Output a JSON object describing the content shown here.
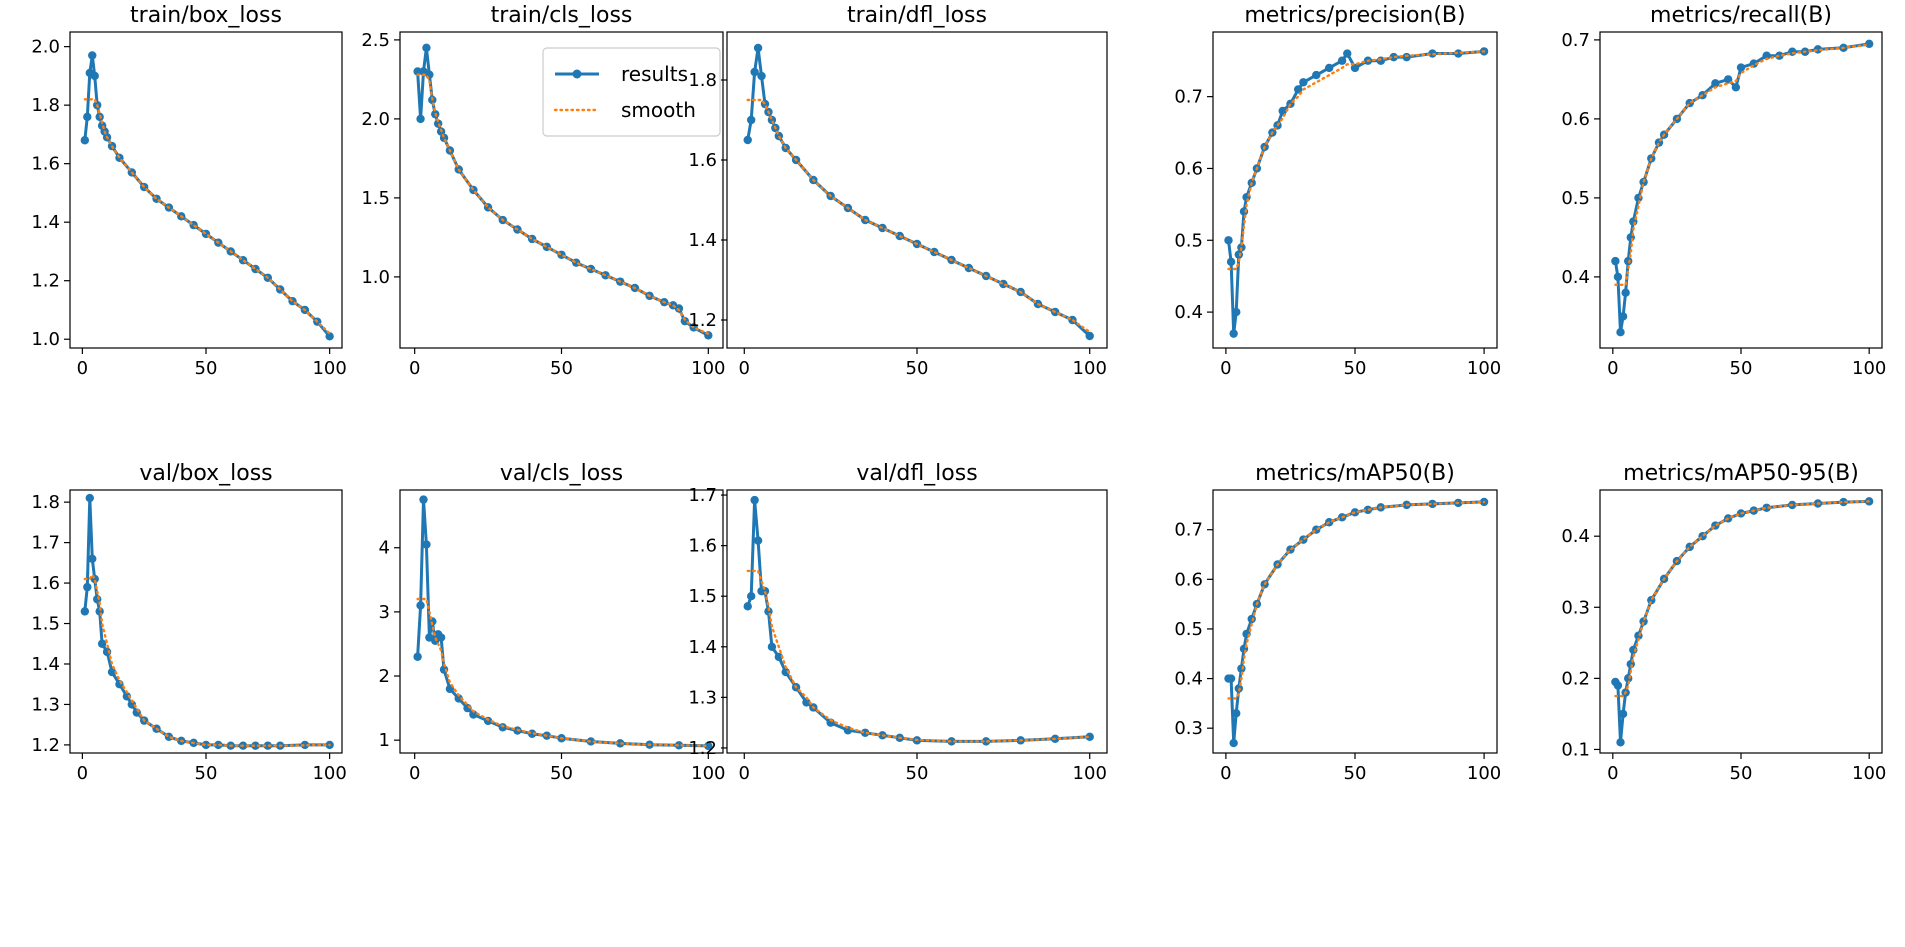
{
  "legend": {
    "results_label": "results",
    "smooth_label": "smooth",
    "results_color": "#1f77b4",
    "smooth_color": "#ff7f0e"
  },
  "chart_data": [
    {
      "type": "line",
      "title": "train/box_loss",
      "xlim": [
        -5,
        105
      ],
      "ylim": [
        0.97,
        2.05
      ],
      "xticks": [
        0,
        50,
        100
      ],
      "yticks": [
        1.0,
        1.2,
        1.4,
        1.6,
        1.8,
        2.0
      ],
      "decimals": 1,
      "grid": false,
      "x": [
        1,
        2,
        3,
        4,
        5,
        6,
        7,
        8,
        9,
        10,
        12,
        15,
        20,
        25,
        30,
        35,
        40,
        45,
        50,
        55,
        60,
        65,
        70,
        75,
        80,
        85,
        90,
        95,
        100
      ],
      "series": [
        {
          "name": "results",
          "values": [
            1.68,
            1.76,
            1.91,
            1.97,
            1.9,
            1.8,
            1.76,
            1.73,
            1.71,
            1.69,
            1.66,
            1.62,
            1.57,
            1.52,
            1.48,
            1.45,
            1.42,
            1.39,
            1.36,
            1.33,
            1.3,
            1.27,
            1.24,
            1.21,
            1.17,
            1.13,
            1.1,
            1.06,
            1.01
          ]
        },
        {
          "name": "smooth",
          "values": [
            1.82,
            1.82,
            1.82,
            1.82,
            1.82,
            1.8,
            1.77,
            1.74,
            1.71,
            1.69,
            1.66,
            1.62,
            1.57,
            1.52,
            1.48,
            1.45,
            1.42,
            1.39,
            1.36,
            1.33,
            1.3,
            1.27,
            1.24,
            1.21,
            1.17,
            1.13,
            1.1,
            1.06,
            1.02
          ]
        }
      ]
    },
    {
      "type": "line",
      "title": "train/cls_loss",
      "xlim": [
        -5,
        105
      ],
      "ylim": [
        0.55,
        2.55
      ],
      "xticks": [
        0,
        50,
        100
      ],
      "yticks": [
        1.0,
        1.5,
        2.0,
        2.5
      ],
      "decimals": 1,
      "grid": false,
      "legend_position": "upper right",
      "x": [
        1,
        2,
        3,
        4,
        5,
        6,
        7,
        8,
        9,
        10,
        12,
        15,
        20,
        25,
        30,
        35,
        40,
        45,
        50,
        55,
        60,
        65,
        70,
        75,
        80,
        85,
        88,
        90,
        92,
        95,
        100
      ],
      "series": [
        {
          "name": "results",
          "values": [
            2.3,
            2.0,
            2.3,
            2.45,
            2.28,
            2.12,
            2.03,
            1.97,
            1.92,
            1.88,
            1.8,
            1.68,
            1.55,
            1.44,
            1.36,
            1.3,
            1.24,
            1.19,
            1.14,
            1.09,
            1.05,
            1.01,
            0.97,
            0.93,
            0.88,
            0.84,
            0.82,
            0.8,
            0.72,
            0.68,
            0.63
          ]
        },
        {
          "name": "smooth",
          "values": [
            2.28,
            2.28,
            2.28,
            2.28,
            2.24,
            2.13,
            2.04,
            1.98,
            1.93,
            1.88,
            1.8,
            1.68,
            1.55,
            1.44,
            1.36,
            1.3,
            1.24,
            1.19,
            1.14,
            1.09,
            1.05,
            1.01,
            0.97,
            0.93,
            0.88,
            0.84,
            0.82,
            0.79,
            0.73,
            0.68,
            0.64
          ]
        }
      ]
    },
    {
      "type": "line",
      "title": "train/dfl_loss",
      "xlim": [
        -5,
        105
      ],
      "ylim": [
        1.13,
        1.92
      ],
      "xticks": [
        0,
        50,
        100
      ],
      "yticks": [
        1.2,
        1.4,
        1.6,
        1.8
      ],
      "decimals": 1,
      "grid": false,
      "x": [
        1,
        2,
        3,
        4,
        5,
        6,
        7,
        8,
        9,
        10,
        12,
        15,
        20,
        25,
        30,
        35,
        40,
        45,
        50,
        55,
        60,
        65,
        70,
        75,
        80,
        85,
        90,
        95,
        100
      ],
      "series": [
        {
          "name": "results",
          "values": [
            1.65,
            1.7,
            1.82,
            1.88,
            1.81,
            1.74,
            1.72,
            1.7,
            1.68,
            1.66,
            1.63,
            1.6,
            1.55,
            1.51,
            1.48,
            1.45,
            1.43,
            1.41,
            1.39,
            1.37,
            1.35,
            1.33,
            1.31,
            1.29,
            1.27,
            1.24,
            1.22,
            1.2,
            1.16
          ]
        },
        {
          "name": "smooth",
          "values": [
            1.75,
            1.75,
            1.75,
            1.75,
            1.75,
            1.74,
            1.72,
            1.7,
            1.68,
            1.66,
            1.63,
            1.6,
            1.55,
            1.51,
            1.48,
            1.45,
            1.43,
            1.41,
            1.39,
            1.37,
            1.35,
            1.33,
            1.31,
            1.29,
            1.27,
            1.24,
            1.22,
            1.2,
            1.17
          ]
        }
      ]
    },
    {
      "type": "line",
      "title": "metrics/precision(B)",
      "xlim": [
        -5,
        105
      ],
      "ylim": [
        0.35,
        0.79
      ],
      "xticks": [
        0,
        50,
        100
      ],
      "yticks": [
        0.4,
        0.5,
        0.6,
        0.7
      ],
      "decimals": 1,
      "grid": false,
      "x": [
        1,
        2,
        3,
        4,
        5,
        6,
        7,
        8,
        10,
        12,
        15,
        18,
        20,
        22,
        25,
        28,
        30,
        35,
        40,
        45,
        47,
        50,
        55,
        60,
        65,
        70,
        80,
        90,
        100
      ],
      "series": [
        {
          "name": "results",
          "values": [
            0.5,
            0.47,
            0.37,
            0.4,
            0.48,
            0.49,
            0.54,
            0.56,
            0.58,
            0.6,
            0.63,
            0.65,
            0.66,
            0.68,
            0.69,
            0.71,
            0.72,
            0.73,
            0.74,
            0.75,
            0.76,
            0.74,
            0.75,
            0.75,
            0.755,
            0.755,
            0.76,
            0.76,
            0.763
          ]
        },
        {
          "name": "smooth",
          "values": [
            0.46,
            0.46,
            0.46,
            0.46,
            0.47,
            0.49,
            0.52,
            0.55,
            0.58,
            0.6,
            0.63,
            0.65,
            0.66,
            0.67,
            0.69,
            0.7,
            0.71,
            0.72,
            0.73,
            0.74,
            0.745,
            0.745,
            0.75,
            0.752,
            0.755,
            0.757,
            0.759,
            0.761,
            0.763
          ]
        }
      ]
    },
    {
      "type": "line",
      "title": "metrics/recall(B)",
      "xlim": [
        -5,
        105
      ],
      "ylim": [
        0.31,
        0.71
      ],
      "xticks": [
        0,
        50,
        100
      ],
      "yticks": [
        0.4,
        0.5,
        0.6,
        0.7
      ],
      "decimals": 1,
      "grid": false,
      "x": [
        1,
        2,
        3,
        4,
        5,
        6,
        7,
        8,
        10,
        12,
        15,
        18,
        20,
        25,
        30,
        35,
        40,
        45,
        48,
        50,
        55,
        60,
        65,
        70,
        75,
        80,
        90,
        100
      ],
      "series": [
        {
          "name": "results",
          "values": [
            0.42,
            0.4,
            0.33,
            0.35,
            0.38,
            0.42,
            0.45,
            0.47,
            0.5,
            0.52,
            0.55,
            0.57,
            0.58,
            0.6,
            0.62,
            0.63,
            0.645,
            0.65,
            0.64,
            0.665,
            0.67,
            0.68,
            0.68,
            0.685,
            0.685,
            0.688,
            0.69,
            0.695
          ]
        },
        {
          "name": "smooth",
          "values": [
            0.39,
            0.39,
            0.39,
            0.39,
            0.39,
            0.41,
            0.43,
            0.46,
            0.49,
            0.52,
            0.55,
            0.57,
            0.58,
            0.6,
            0.62,
            0.63,
            0.64,
            0.645,
            0.648,
            0.658,
            0.668,
            0.676,
            0.68,
            0.683,
            0.685,
            0.687,
            0.69,
            0.694
          ]
        }
      ]
    },
    {
      "type": "line",
      "title": "val/box_loss",
      "xlim": [
        -5,
        105
      ],
      "ylim": [
        1.18,
        1.83
      ],
      "xticks": [
        0,
        50,
        100
      ],
      "yticks": [
        1.2,
        1.3,
        1.4,
        1.5,
        1.6,
        1.7,
        1.8
      ],
      "decimals": 1,
      "grid": false,
      "x": [
        1,
        2,
        3,
        4,
        5,
        6,
        7,
        8,
        10,
        12,
        15,
        18,
        20,
        22,
        25,
        30,
        35,
        40,
        45,
        50,
        55,
        60,
        65,
        70,
        75,
        80,
        90,
        100
      ],
      "series": [
        {
          "name": "results",
          "values": [
            1.53,
            1.59,
            1.81,
            1.66,
            1.61,
            1.56,
            1.53,
            1.45,
            1.43,
            1.38,
            1.35,
            1.32,
            1.3,
            1.28,
            1.26,
            1.24,
            1.22,
            1.21,
            1.205,
            1.2,
            1.2,
            1.198,
            1.198,
            1.198,
            1.198,
            1.198,
            1.2,
            1.2
          ]
        },
        {
          "name": "smooth",
          "values": [
            1.61,
            1.61,
            1.61,
            1.62,
            1.61,
            1.58,
            1.55,
            1.5,
            1.45,
            1.4,
            1.36,
            1.33,
            1.31,
            1.29,
            1.26,
            1.24,
            1.22,
            1.21,
            1.205,
            1.2,
            1.2,
            1.198,
            1.198,
            1.198,
            1.198,
            1.198,
            1.199,
            1.2
          ]
        }
      ]
    },
    {
      "type": "line",
      "title": "val/cls_loss",
      "xlim": [
        -5,
        105
      ],
      "ylim": [
        0.8,
        4.9
      ],
      "xticks": [
        0,
        50,
        100
      ],
      "yticks": [
        1,
        2,
        3,
        4
      ],
      "decimals": 0,
      "grid": false,
      "x": [
        1,
        2,
        3,
        4,
        5,
        6,
        7,
        8,
        9,
        10,
        12,
        15,
        18,
        20,
        25,
        30,
        35,
        40,
        45,
        50,
        60,
        70,
        80,
        90,
        100
      ],
      "series": [
        {
          "name": "results",
          "values": [
            2.3,
            3.1,
            4.75,
            4.05,
            2.6,
            2.85,
            2.55,
            2.65,
            2.6,
            2.1,
            1.8,
            1.65,
            1.5,
            1.4,
            1.3,
            1.2,
            1.15,
            1.1,
            1.07,
            1.03,
            0.98,
            0.95,
            0.93,
            0.92,
            0.91
          ]
        },
        {
          "name": "smooth",
          "values": [
            3.2,
            3.2,
            3.2,
            3.2,
            3.0,
            2.8,
            2.6,
            2.5,
            2.4,
            2.2,
            1.9,
            1.7,
            1.55,
            1.45,
            1.32,
            1.22,
            1.16,
            1.11,
            1.07,
            1.03,
            0.98,
            0.95,
            0.93,
            0.92,
            0.91
          ]
        }
      ]
    },
    {
      "type": "line",
      "title": "val/dfl_loss",
      "xlim": [
        -5,
        105
      ],
      "ylim": [
        1.19,
        1.71
      ],
      "xticks": [
        0,
        50,
        100
      ],
      "yticks": [
        1.2,
        1.3,
        1.4,
        1.5,
        1.6,
        1.7
      ],
      "decimals": 1,
      "grid": false,
      "x": [
        1,
        2,
        3,
        4,
        5,
        6,
        7,
        8,
        10,
        12,
        15,
        18,
        20,
        25,
        30,
        35,
        40,
        45,
        50,
        60,
        70,
        80,
        90,
        100
      ],
      "series": [
        {
          "name": "results",
          "values": [
            1.48,
            1.5,
            1.69,
            1.61,
            1.51,
            1.51,
            1.47,
            1.4,
            1.38,
            1.35,
            1.32,
            1.29,
            1.28,
            1.25,
            1.235,
            1.23,
            1.225,
            1.22,
            1.215,
            1.213,
            1.213,
            1.215,
            1.218,
            1.222
          ]
        },
        {
          "name": "smooth",
          "values": [
            1.55,
            1.55,
            1.55,
            1.55,
            1.53,
            1.51,
            1.48,
            1.44,
            1.4,
            1.36,
            1.32,
            1.3,
            1.28,
            1.255,
            1.24,
            1.23,
            1.225,
            1.22,
            1.216,
            1.213,
            1.213,
            1.215,
            1.218,
            1.222
          ]
        }
      ]
    },
    {
      "type": "line",
      "title": "metrics/mAP50(B)",
      "xlim": [
        -5,
        105
      ],
      "ylim": [
        0.25,
        0.78
      ],
      "xticks": [
        0,
        50,
        100
      ],
      "yticks": [
        0.3,
        0.4,
        0.5,
        0.6,
        0.7
      ],
      "decimals": 1,
      "grid": false,
      "x": [
        1,
        2,
        3,
        4,
        5,
        6,
        7,
        8,
        10,
        12,
        15,
        20,
        25,
        30,
        35,
        40,
        45,
        50,
        55,
        60,
        70,
        80,
        90,
        100
      ],
      "series": [
        {
          "name": "results",
          "values": [
            0.4,
            0.4,
            0.27,
            0.33,
            0.38,
            0.42,
            0.46,
            0.49,
            0.52,
            0.55,
            0.59,
            0.63,
            0.66,
            0.68,
            0.7,
            0.715,
            0.725,
            0.735,
            0.74,
            0.745,
            0.75,
            0.752,
            0.754,
            0.756
          ]
        },
        {
          "name": "smooth",
          "values": [
            0.36,
            0.36,
            0.36,
            0.36,
            0.37,
            0.4,
            0.44,
            0.47,
            0.51,
            0.55,
            0.59,
            0.63,
            0.66,
            0.68,
            0.7,
            0.715,
            0.725,
            0.735,
            0.74,
            0.745,
            0.75,
            0.752,
            0.754,
            0.756
          ]
        }
      ]
    },
    {
      "type": "line",
      "title": "metrics/mAP50-95(B)",
      "xlim": [
        -5,
        105
      ],
      "ylim": [
        0.095,
        0.465
      ],
      "xticks": [
        0,
        50,
        100
      ],
      "yticks": [
        0.1,
        0.2,
        0.3,
        0.4
      ],
      "decimals": 1,
      "grid": false,
      "x": [
        1,
        2,
        3,
        4,
        5,
        6,
        7,
        8,
        10,
        12,
        15,
        20,
        25,
        30,
        35,
        40,
        45,
        50,
        55,
        60,
        70,
        80,
        90,
        100
      ],
      "series": [
        {
          "name": "results",
          "values": [
            0.195,
            0.19,
            0.11,
            0.15,
            0.18,
            0.2,
            0.22,
            0.24,
            0.26,
            0.28,
            0.31,
            0.34,
            0.365,
            0.385,
            0.4,
            0.415,
            0.425,
            0.432,
            0.436,
            0.44,
            0.444,
            0.446,
            0.448,
            0.449
          ]
        },
        {
          "name": "smooth",
          "values": [
            0.175,
            0.175,
            0.175,
            0.175,
            0.18,
            0.19,
            0.21,
            0.23,
            0.255,
            0.28,
            0.31,
            0.34,
            0.365,
            0.385,
            0.4,
            0.415,
            0.425,
            0.432,
            0.436,
            0.44,
            0.444,
            0.446,
            0.448,
            0.449
          ]
        }
      ]
    }
  ]
}
